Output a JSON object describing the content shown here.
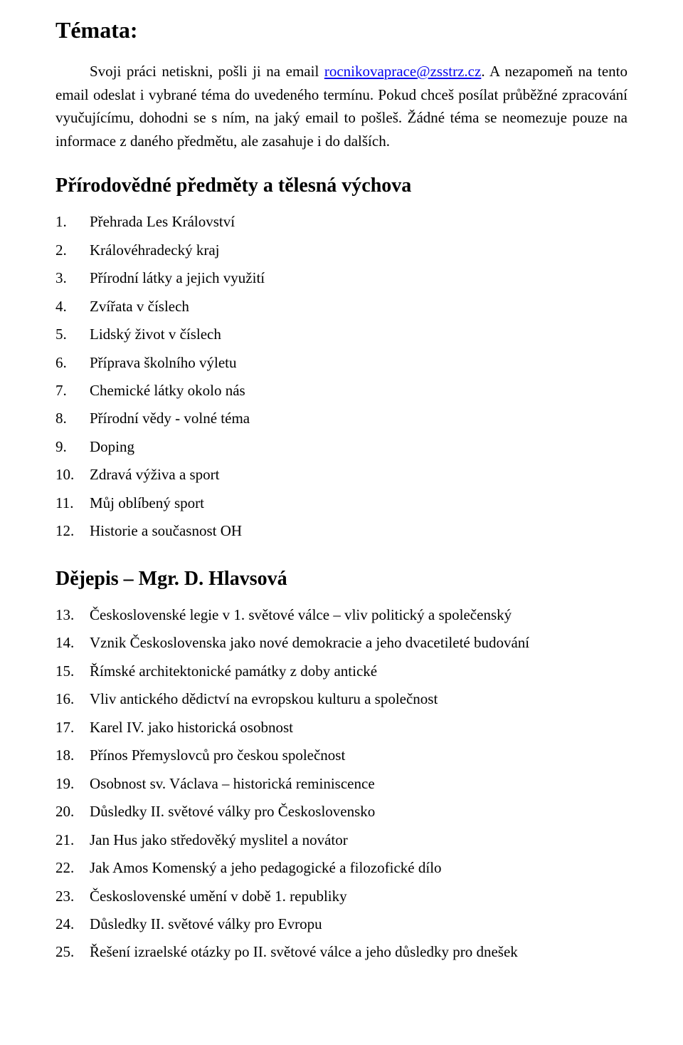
{
  "title": "Témata:",
  "intro": {
    "p1a": "Svoji práci netiskni, pošli ji na email ",
    "email": "rocnikovaprace@zsstrz.cz",
    "p1b": ". A nezapomeň na tento email odeslat i vybrané téma do uvedeného termínu. Pokud chceš posílat průběžné zpracování vyučujícímu, dohodni se s ním, na jaký email to pošleš. Žádné téma se neomezuje pouze na informace z daného předmětu, ale zasahuje i do dalších."
  },
  "section1": {
    "heading": "Přírodovědné předměty a tělesná výchova",
    "items": [
      {
        "n": "1.",
        "t": "Přehrada Les Království"
      },
      {
        "n": "2.",
        "t": "Královéhradecký kraj"
      },
      {
        "n": "3.",
        "t": "Přírodní látky a jejich využití"
      },
      {
        "n": "4.",
        "t": "Zvířata v číslech"
      },
      {
        "n": "5.",
        "t": "Lidský život v číslech"
      },
      {
        "n": "6.",
        "t": "Příprava školního výletu"
      },
      {
        "n": "7.",
        "t": "Chemické látky okolo nás"
      },
      {
        "n": "8.",
        "t": "Přírodní vědy - volné téma"
      },
      {
        "n": "9.",
        "t": "Doping"
      },
      {
        "n": "10.",
        "t": "Zdravá výživa a sport"
      },
      {
        "n": "11.",
        "t": "Můj oblíbený sport"
      },
      {
        "n": "12.",
        "t": "Historie a současnost OH"
      }
    ]
  },
  "section2": {
    "heading": "Dějepis – Mgr. D. Hlavsová",
    "items": [
      {
        "n": "13.",
        "t": "Československé legie v 1. světové válce – vliv politický a společenský"
      },
      {
        "n": "14.",
        "t": "Vznik Československa jako nové demokracie a jeho dvacetileté budování"
      },
      {
        "n": "15.",
        "t": "Římské architektonické památky z doby antické"
      },
      {
        "n": "16.",
        "t": "Vliv antického dědictví na evropskou kulturu a společnost"
      },
      {
        "n": "17.",
        "t": "Karel IV. jako historická osobnost"
      },
      {
        "n": "18.",
        "t": "Přínos Přemyslovců pro českou společnost"
      },
      {
        "n": "19.",
        "t": "Osobnost sv. Václava – historická reminiscence"
      },
      {
        "n": "20.",
        "t": "Důsledky II. světové války pro Československo"
      },
      {
        "n": "21.",
        "t": "Jan Hus jako středověký myslitel a novátor"
      },
      {
        "n": "22.",
        "t": "Jak Amos Komenský a jeho pedagogické a filozofické dílo"
      },
      {
        "n": "23.",
        "t": "Československé umění v době 1. republiky"
      },
      {
        "n": "24.",
        "t": "Důsledky II. světové války pro Evropu"
      },
      {
        "n": "25.",
        "t": "Řešení izraelské otázky po II. světové válce a jeho důsledky pro dnešek"
      }
    ]
  }
}
